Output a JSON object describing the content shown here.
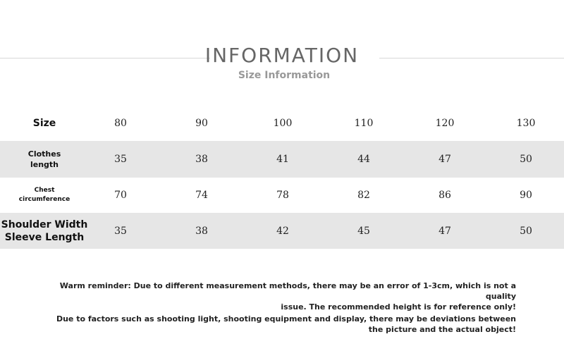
{
  "header": {
    "title": "INFORMATION",
    "subtitle": "Size Information"
  },
  "table": {
    "rows": [
      {
        "label": [
          "Size"
        ],
        "cells": [
          "80",
          "90",
          "100",
          "110",
          "120",
          "130"
        ]
      },
      {
        "label": [
          "Clothes",
          "length"
        ],
        "cells": [
          "35",
          "38",
          "41",
          "44",
          "47",
          "50"
        ]
      },
      {
        "label": [
          "Chest",
          "circumference"
        ],
        "cells": [
          "70",
          "74",
          "78",
          "82",
          "86",
          "90"
        ]
      },
      {
        "label": [
          "Shoulder Width",
          "Sleeve Length"
        ],
        "cells": [
          "35",
          "38",
          "42",
          "45",
          "47",
          "50"
        ]
      }
    ]
  },
  "notes": [
    [
      "Warm reminder: Due to different measurement methods, there may be an error of 1-3cm, which is not a quality",
      "issue. The recommended height is for reference only!"
    ],
    [
      "Due to factors such as shooting light, shooting equipment and display, there may be deviations between",
      "the picture and the actual object!"
    ]
  ]
}
